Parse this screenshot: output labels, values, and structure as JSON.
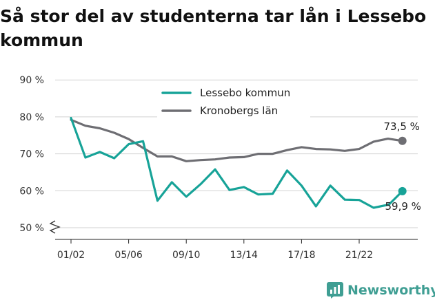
{
  "title": "Så stor del av studenterna tar lån i Lessebo kommun",
  "brand": {
    "name": "Newsworthy",
    "icon": "bar-chart-logo-icon",
    "color": "#3f9e93"
  },
  "chart_data": {
    "type": "line",
    "title": "Så stor del av studenterna tar lån i Lessebo kommun",
    "xlabel": "",
    "ylabel": "",
    "ylim": [
      49,
      92
    ],
    "y_axis_break": true,
    "y_ticks": [
      "50 %",
      "60 %",
      "70 %",
      "80 %",
      "90 %"
    ],
    "y_tick_values": [
      50,
      60,
      70,
      80,
      90
    ],
    "x_ticks": [
      "01/02",
      "05/06",
      "09/10",
      "13/14",
      "17/18",
      "21/22"
    ],
    "x_tick_index": [
      0,
      4,
      8,
      12,
      16,
      20
    ],
    "grid": "horizontal",
    "legend_position": "top-center",
    "series": [
      {
        "name": "Lessebo kommun",
        "color": "#17a398",
        "values": [
          79.7,
          69.0,
          70.5,
          68.8,
          72.6,
          73.4,
          57.3,
          62.3,
          58.4,
          61.8,
          65.8,
          60.2,
          61.0,
          59.0,
          59.2,
          65.5,
          61.4,
          55.8,
          61.4,
          57.6,
          57.5,
          55.4,
          56.2,
          59.9
        ],
        "end_label": "59,9 %",
        "gap_before_last": true
      },
      {
        "name": "Kronobergs län",
        "color": "#6e6e73",
        "values": [
          79.2,
          77.6,
          76.9,
          75.7,
          74.0,
          71.6,
          69.3,
          69.3,
          68.0,
          68.3,
          68.5,
          69.0,
          69.1,
          70.0,
          70.0,
          71.0,
          71.8,
          71.3,
          71.2,
          70.8,
          71.3,
          73.3,
          74.1,
          73.5
        ],
        "end_label": "73,5 %",
        "gap_before_last": false
      }
    ]
  }
}
